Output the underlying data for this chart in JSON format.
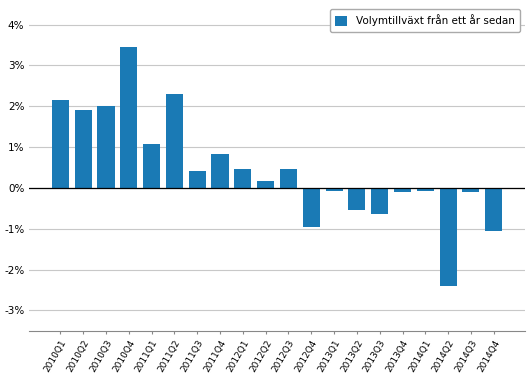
{
  "categories": [
    "2010Q1",
    "2010Q2",
    "2010Q3",
    "2010Q4",
    "2011Q1",
    "2011Q2",
    "2011Q3",
    "2011Q4",
    "2012Q1",
    "2012Q2",
    "2012Q3",
    "2012Q4",
    "2013Q1",
    "2013Q2",
    "2013Q3",
    "2013Q4",
    "2014Q1",
    "2014Q2",
    "2014Q3",
    "2014Q4"
  ],
  "values": [
    2.15,
    1.9,
    2.0,
    3.45,
    1.07,
    2.3,
    0.42,
    0.82,
    0.47,
    0.18,
    0.47,
    -0.95,
    -0.07,
    -0.55,
    -0.65,
    -0.1,
    -0.07,
    -2.4,
    -0.1,
    -1.05
  ],
  "bar_color": "#1a7ab5",
  "legend_label": "Volymtillväxt från ett år sedan",
  "ylim": [
    -3.5,
    4.5
  ],
  "yticks": [
    -3,
    -2,
    -1,
    0,
    1,
    2,
    3,
    4
  ],
  "ytick_labels": [
    "-3%",
    "-2%",
    "-1%",
    "0%",
    "1%",
    "2%",
    "3%",
    "4%"
  ],
  "background_color": "#ffffff",
  "grid_color": "#c8c8c8"
}
